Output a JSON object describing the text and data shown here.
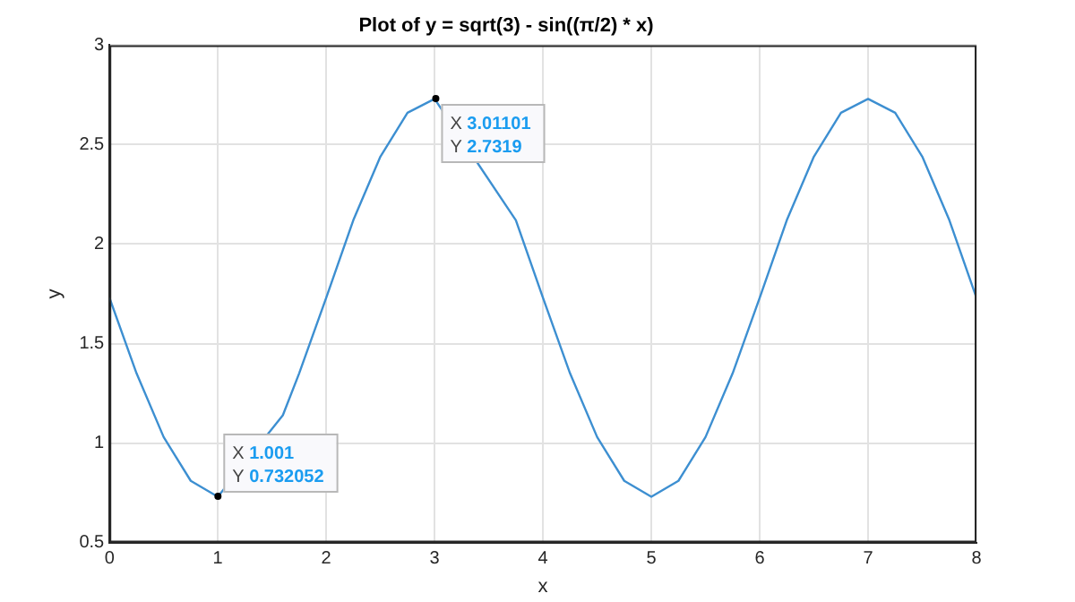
{
  "chart_data": {
    "type": "line",
    "title": "Plot of y = sqrt(3) - sin((π/2) * x)",
    "xlabel": "x",
    "ylabel": "y",
    "x": [
      0,
      0.25,
      0.5,
      0.75,
      1,
      1.6,
      1.75,
      2,
      2.25,
      2.5,
      2.75,
      3,
      3.75,
      4,
      4.25,
      4.5,
      4.75,
      5,
      5.25,
      5.5,
      5.75,
      6,
      6.25,
      6.5,
      6.75,
      7,
      7.25,
      7.5,
      7.75,
      8
    ],
    "series": [
      {
        "color": "#3d8fd1",
        "values": [
          1.73,
          1.35,
          1.03,
          0.81,
          0.73,
          1.14,
          1.35,
          1.73,
          2.12,
          2.44,
          2.66,
          2.73,
          2.12,
          1.73,
          1.35,
          1.03,
          0.81,
          0.73,
          0.81,
          1.03,
          1.35,
          1.73,
          2.12,
          2.44,
          2.66,
          2.73,
          2.66,
          2.44,
          2.12,
          1.73
        ]
      }
    ],
    "xlim": [
      0,
      8
    ],
    "xticks": [
      0,
      1,
      2,
      3,
      4,
      5,
      6,
      7,
      8
    ],
    "ylim": [
      0.5,
      3
    ],
    "yticks": [
      0.5,
      1,
      1.5,
      2,
      2.5,
      3
    ],
    "grid": true,
    "legend": false,
    "marker": "none",
    "line_style": "solid",
    "annotations": [
      {
        "text": "X 1.001\nY 0.732052",
        "x": 1.001,
        "y": 0.732052
      },
      {
        "text": "X 3.01101\nY 2.7319",
        "x": 3.01101,
        "y": 2.7319
      }
    ]
  }
}
